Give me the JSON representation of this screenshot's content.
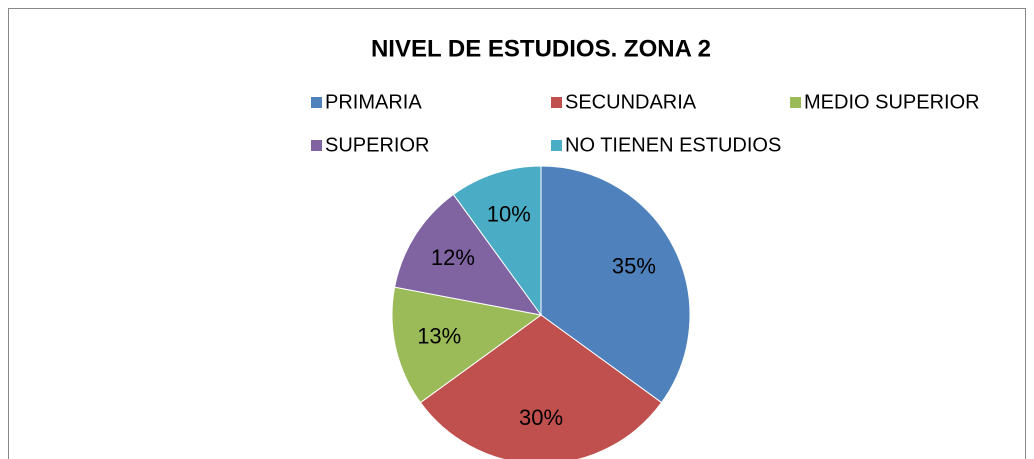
{
  "chart_data": {
    "type": "pie",
    "title": "NIVEL DE ESTUDIOS. ZONA 2",
    "categories": [
      "PRIMARIA",
      "SECUNDARIA",
      "MEDIO SUPERIOR",
      "SUPERIOR",
      "NO TIENEN ESTUDIOS"
    ],
    "values": [
      35,
      30,
      13,
      12,
      10
    ],
    "value_labels": [
      "35%",
      "30%",
      "13%",
      "12%",
      "10%"
    ],
    "colors": [
      "#4f81bd",
      "#c0504d",
      "#9bbb59",
      "#8064a2",
      "#4bacc6"
    ],
    "legend": "top"
  }
}
